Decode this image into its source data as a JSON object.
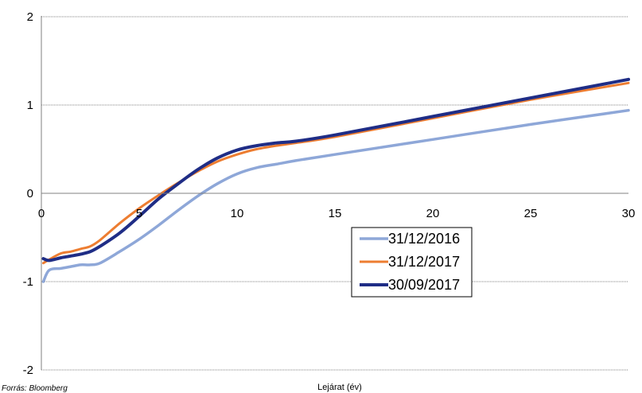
{
  "chart_data": {
    "type": "line",
    "title": "",
    "xlabel": "Lejárat (év)",
    "ylabel": "",
    "source": "Forrás: Bloomberg",
    "xlim": [
      0,
      30
    ],
    "ylim": [
      -2,
      2
    ],
    "x_ticks": [
      "0",
      "5",
      "10",
      "15",
      "20",
      "25",
      "30"
    ],
    "y_ticks": [
      "2",
      "1",
      "0",
      "-1",
      "-2"
    ],
    "grid": "horizontal",
    "legend_position": "center-right",
    "series": [
      {
        "name": "31/12/2016",
        "color": "#8ea7d8",
        "x": [
          0.1,
          0.4,
          1,
          1.5,
          2,
          2.5,
          3,
          4,
          5,
          6,
          7,
          8,
          9,
          10,
          11,
          12,
          13,
          15,
          20,
          25,
          30
        ],
        "y": [
          -1.0,
          -0.87,
          -0.85,
          -0.83,
          -0.81,
          -0.81,
          -0.79,
          -0.66,
          -0.52,
          -0.36,
          -0.19,
          -0.03,
          0.11,
          0.22,
          0.29,
          0.33,
          0.37,
          0.44,
          0.61,
          0.78,
          0.94
        ]
      },
      {
        "name": "31/12/2017",
        "color": "#ed7d31",
        "x": [
          0.1,
          0.4,
          1,
          1.5,
          2,
          2.5,
          3,
          4,
          5,
          6,
          7,
          8,
          9,
          10,
          11,
          12,
          13,
          15,
          20,
          25,
          30
        ],
        "y": [
          -0.79,
          -0.75,
          -0.68,
          -0.66,
          -0.63,
          -0.6,
          -0.53,
          -0.34,
          -0.17,
          -0.02,
          0.12,
          0.25,
          0.36,
          0.44,
          0.5,
          0.54,
          0.57,
          0.64,
          0.85,
          1.06,
          1.25
        ]
      },
      {
        "name": "30/09/2017",
        "color": "#1f2d86",
        "x": [
          0.1,
          0.4,
          1,
          1.5,
          2,
          2.5,
          3,
          4,
          5,
          6,
          7,
          8,
          9,
          10,
          11,
          12,
          13,
          15,
          20,
          25,
          30
        ],
        "y": [
          -0.74,
          -0.76,
          -0.73,
          -0.71,
          -0.69,
          -0.66,
          -0.6,
          -0.45,
          -0.26,
          -0.06,
          0.11,
          0.27,
          0.4,
          0.49,
          0.54,
          0.57,
          0.59,
          0.66,
          0.87,
          1.08,
          1.29
        ]
      }
    ]
  }
}
